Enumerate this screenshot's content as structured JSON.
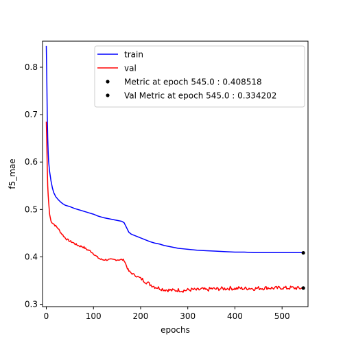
{
  "chart_data": {
    "type": "line",
    "xlabel": "epochs",
    "ylabel": "f5_mae",
    "xlim": [
      -8,
      555
    ],
    "ylim": [
      0.295,
      0.855
    ],
    "xticks": [
      0,
      100,
      200,
      300,
      400,
      500
    ],
    "yticks": [
      0.3,
      0.4,
      0.5,
      0.6,
      0.7,
      0.8
    ],
    "grid": false,
    "legend_position": "top-right",
    "series": [
      {
        "name": "train",
        "color": "#0000ff",
        "style": "line",
        "points": [
          [
            0,
            0.845
          ],
          [
            1,
            0.78
          ],
          [
            2,
            0.7
          ],
          [
            3,
            0.65
          ],
          [
            4,
            0.62
          ],
          [
            5,
            0.6
          ],
          [
            7,
            0.58
          ],
          [
            10,
            0.56
          ],
          [
            13,
            0.545
          ],
          [
            16,
            0.535
          ],
          [
            20,
            0.527
          ],
          [
            25,
            0.521
          ],
          [
            30,
            0.516
          ],
          [
            35,
            0.512
          ],
          [
            40,
            0.509
          ],
          [
            50,
            0.506
          ],
          [
            60,
            0.502
          ],
          [
            70,
            0.499
          ],
          [
            80,
            0.496
          ],
          [
            90,
            0.493
          ],
          [
            100,
            0.49
          ],
          [
            110,
            0.486
          ],
          [
            120,
            0.483
          ],
          [
            130,
            0.481
          ],
          [
            140,
            0.479
          ],
          [
            150,
            0.477
          ],
          [
            160,
            0.475
          ],
          [
            165,
            0.472
          ],
          [
            170,
            0.462
          ],
          [
            175,
            0.452
          ],
          [
            180,
            0.448
          ],
          [
            190,
            0.444
          ],
          [
            200,
            0.44
          ],
          [
            210,
            0.436
          ],
          [
            220,
            0.432
          ],
          [
            230,
            0.429
          ],
          [
            240,
            0.427
          ],
          [
            250,
            0.424
          ],
          [
            260,
            0.422
          ],
          [
            270,
            0.42
          ],
          [
            280,
            0.418
          ],
          [
            290,
            0.417
          ],
          [
            300,
            0.416
          ],
          [
            320,
            0.414
          ],
          [
            340,
            0.413
          ],
          [
            360,
            0.412
          ],
          [
            380,
            0.411
          ],
          [
            400,
            0.41
          ],
          [
            420,
            0.41
          ],
          [
            440,
            0.409
          ],
          [
            460,
            0.409
          ],
          [
            480,
            0.409
          ],
          [
            500,
            0.409
          ],
          [
            520,
            0.409
          ],
          [
            545,
            0.409
          ]
        ]
      },
      {
        "name": "val",
        "color": "#ff0000",
        "style": "line",
        "points": [
          [
            0,
            0.685
          ],
          [
            1,
            0.64
          ],
          [
            2,
            0.59
          ],
          [
            3,
            0.55
          ],
          [
            4,
            0.53
          ],
          [
            5,
            0.515
          ],
          [
            7,
            0.49
          ],
          [
            10,
            0.475
          ],
          [
            15,
            0.47
          ],
          [
            20,
            0.465
          ],
          [
            25,
            0.46
          ],
          [
            30,
            0.452
          ],
          [
            35,
            0.446
          ],
          [
            40,
            0.44
          ],
          [
            45,
            0.436
          ],
          [
            50,
            0.433
          ],
          [
            55,
            0.431
          ],
          [
            60,
            0.428
          ],
          [
            65,
            0.425
          ],
          [
            70,
            0.423
          ],
          [
            75,
            0.422
          ],
          [
            80,
            0.42
          ],
          [
            85,
            0.416
          ],
          [
            90,
            0.414
          ],
          [
            95,
            0.411
          ],
          [
            100,
            0.407
          ],
          [
            105,
            0.402
          ],
          [
            110,
            0.398
          ],
          [
            115,
            0.395
          ],
          [
            120,
            0.394
          ],
          [
            130,
            0.394
          ],
          [
            140,
            0.394
          ],
          [
            150,
            0.394
          ],
          [
            160,
            0.394
          ],
          [
            165,
            0.393
          ],
          [
            168,
            0.386
          ],
          [
            172,
            0.376
          ],
          [
            175,
            0.37
          ],
          [
            180,
            0.366
          ],
          [
            190,
            0.36
          ],
          [
            200,
            0.355
          ],
          [
            210,
            0.348
          ],
          [
            220,
            0.342
          ],
          [
            230,
            0.337
          ],
          [
            240,
            0.334
          ],
          [
            250,
            0.331
          ],
          [
            260,
            0.33
          ],
          [
            270,
            0.329
          ],
          [
            280,
            0.33
          ],
          [
            290,
            0.329
          ],
          [
            300,
            0.33
          ],
          [
            310,
            0.331
          ],
          [
            320,
            0.33
          ],
          [
            330,
            0.332
          ],
          [
            340,
            0.33
          ],
          [
            350,
            0.333
          ],
          [
            360,
            0.332
          ],
          [
            370,
            0.333
          ],
          [
            380,
            0.333
          ],
          [
            390,
            0.334
          ],
          [
            400,
            0.333
          ],
          [
            410,
            0.334
          ],
          [
            420,
            0.333
          ],
          [
            430,
            0.334
          ],
          [
            440,
            0.333
          ],
          [
            450,
            0.334
          ],
          [
            460,
            0.334
          ],
          [
            470,
            0.335
          ],
          [
            480,
            0.334
          ],
          [
            490,
            0.334
          ],
          [
            500,
            0.335
          ],
          [
            510,
            0.334
          ],
          [
            520,
            0.335
          ],
          [
            530,
            0.334
          ],
          [
            545,
            0.334
          ]
        ]
      },
      {
        "name": "Metric at epoch 545.0 : 0.408518",
        "color": "#000000",
        "style": "marker",
        "points": [
          [
            545,
            0.408518
          ]
        ]
      },
      {
        "name": "Val Metric at epoch 545.0 : 0.334202",
        "color": "#000000",
        "style": "marker",
        "points": [
          [
            545,
            0.334202
          ]
        ]
      }
    ]
  }
}
